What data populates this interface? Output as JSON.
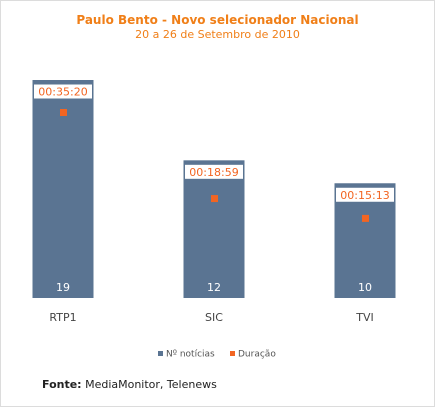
{
  "chart_data": {
    "type": "bar",
    "title": "Paulo Bento - Novo selecionador Nacional",
    "subtitle": "20 a 26 de Setembro de 2010",
    "categories": [
      "RTP1",
      "SIC",
      "TVI"
    ],
    "series": [
      {
        "name": "Nº notícias",
        "type": "bar",
        "values": [
          19,
          12,
          10
        ],
        "color": "#5a7492"
      },
      {
        "name": "Duração",
        "type": "marker",
        "values": [
          "00:35:20",
          "00:18:59",
          "00:15:13"
        ],
        "color": "#f26522"
      }
    ],
    "legend_position": "bottom",
    "grid": false
  },
  "source": {
    "label": "Fonte:",
    "text": "MediaMonitor, Telenews"
  },
  "colors": {
    "title": "#f07f18",
    "bar": "#5a7492",
    "marker": "#f26522"
  }
}
